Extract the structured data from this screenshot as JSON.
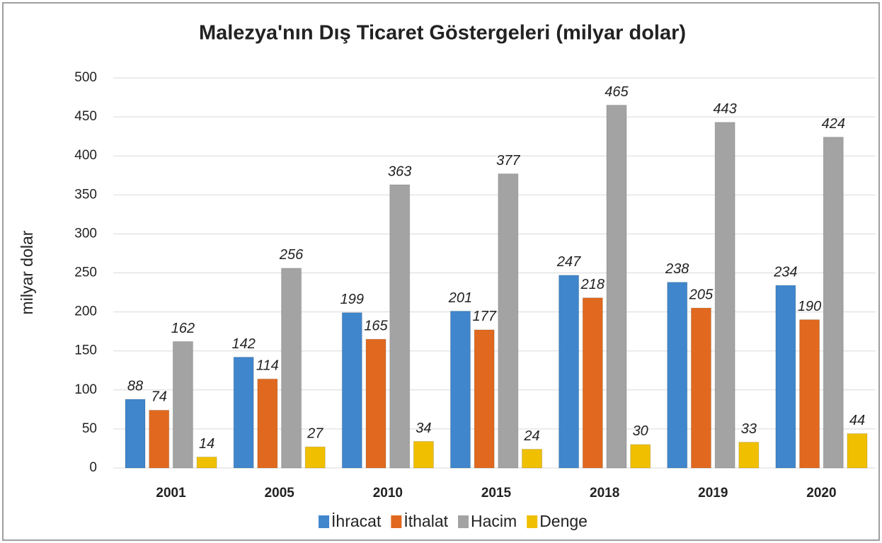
{
  "chart_data": {
    "type": "bar",
    "title": "Malezya'nın Dış Ticaret Göstergeleri  (milyar dolar)",
    "y_label": "milyar dolar",
    "categories": [
      "2001",
      "2005",
      "2010",
      "2015",
      "2018",
      "2019",
      "2020"
    ],
    "series": [
      {
        "name": "İhracat",
        "color": "#3f86cc",
        "values": [
          88,
          142,
          199,
          201,
          247,
          238,
          234
        ]
      },
      {
        "name": "İthalat",
        "color": "#e0691f",
        "values": [
          74,
          114,
          165,
          177,
          218,
          205,
          190
        ]
      },
      {
        "name": "Hacim",
        "color": "#a3a3a3",
        "values": [
          162,
          256,
          363,
          377,
          465,
          443,
          424
        ]
      },
      {
        "name": "Denge",
        "color": "#f0c000",
        "values": [
          14,
          27,
          34,
          24,
          30,
          33,
          44
        ]
      }
    ],
    "ylim": [
      0,
      500
    ],
    "yticks": [
      0,
      50,
      100,
      150,
      200,
      250,
      300,
      350,
      400,
      450,
      500
    ],
    "grid": true,
    "legend": "bottom"
  }
}
